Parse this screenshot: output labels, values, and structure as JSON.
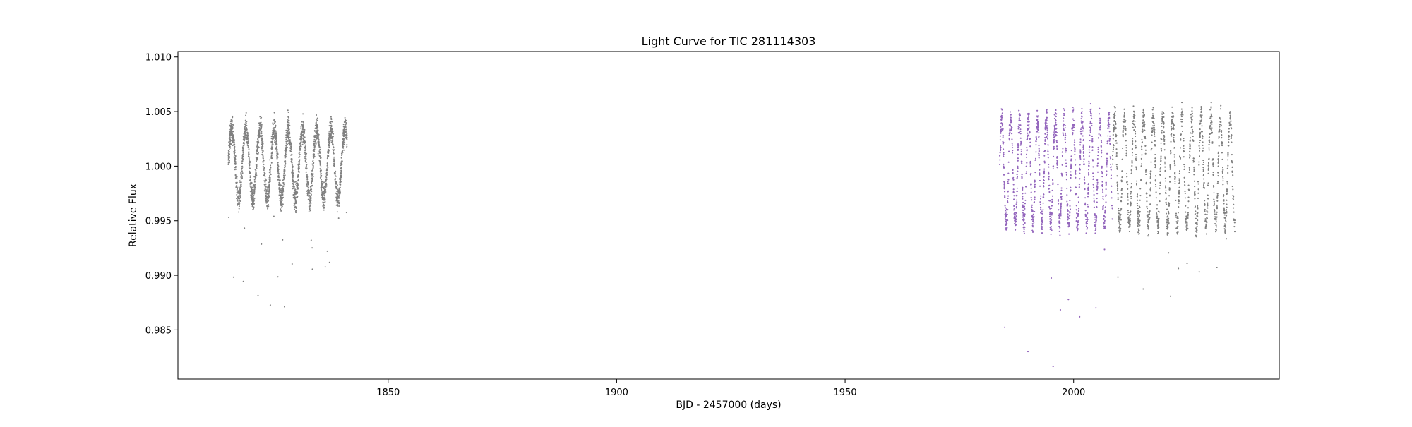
{
  "chart_data": {
    "type": "scatter",
    "title": "Light Curve for TIC 281114303",
    "xlabel": "BJD - 2457000 (days)",
    "ylabel": "Relative Flux",
    "xlim": [
      1804,
      2045
    ],
    "ylim": [
      0.9805,
      1.0105
    ],
    "x_ticks": [
      1850,
      1900,
      1950,
      2000
    ],
    "x_tick_labels": [
      "1850",
      "1900",
      "1950",
      "2000"
    ],
    "y_ticks": [
      0.985,
      0.99,
      0.995,
      1.0,
      1.005,
      1.01
    ],
    "y_tick_labels": [
      "0.985",
      "0.990",
      "0.995",
      "1.000",
      "1.005",
      "1.010"
    ],
    "grid": false,
    "legend": "none",
    "series": [
      {
        "color": "#808080",
        "segments": [
          {
            "x_start": 1815.0,
            "x_end": 1841.0,
            "center": 1.0002,
            "amplitude": 0.0032,
            "period": 3.1,
            "scatter": 0.0011,
            "dip_floor": 0.987
          },
          {
            "x_start": 2008.5,
            "x_end": 2035.3,
            "center": 0.9995,
            "amplitude": 0.005,
            "period": 2.1,
            "scatter": 0.0011,
            "dip_floor": 0.988
          }
        ]
      },
      {
        "color": "#9467bd",
        "segments": [
          {
            "x_start": 1983.8,
            "x_end": 2008.5,
            "center": 0.9995,
            "amplitude": 0.0048,
            "period": 1.95,
            "scatter": 0.0011,
            "dip_floor": 0.9815
          }
        ]
      }
    ]
  }
}
